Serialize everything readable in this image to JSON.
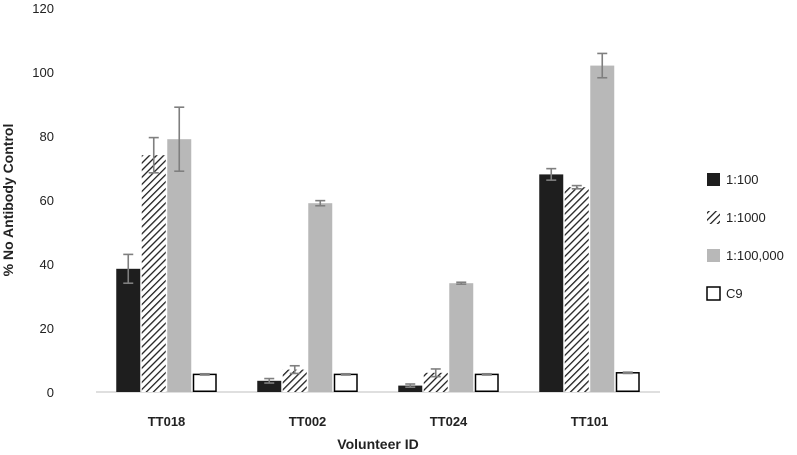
{
  "chart_data": {
    "type": "bar",
    "xlabel": "Volunteer ID",
    "ylabel": "% No Antibody Control",
    "ylim": [
      0,
      120
    ],
    "yticks": [
      0,
      20,
      40,
      60,
      80,
      100,
      120
    ],
    "grid": false,
    "legend_position": "right",
    "categories": [
      "TT018",
      "TT002",
      "TT024",
      "TT101"
    ],
    "series": [
      {
        "name": "1:100",
        "fill": "solid",
        "color": "#1e1e1e",
        "values": [
          38.5,
          3.5,
          2.0,
          68.0
        ],
        "errors": [
          4.5,
          0.7,
          0.5,
          1.8
        ]
      },
      {
        "name": "1:1000",
        "fill": "hatched",
        "color": "#1e1e1e",
        "values": [
          74.0,
          7.0,
          6.0,
          64.0
        ],
        "errors": [
          5.5,
          1.2,
          1.2,
          0.5
        ]
      },
      {
        "name": "1:100,000",
        "fill": "solid",
        "color": "#b8b8b8",
        "values": [
          79.0,
          59.0,
          34.0,
          102.0
        ],
        "errors": [
          10.0,
          0.8,
          0.3,
          3.8
        ]
      },
      {
        "name": "C9",
        "fill": "outline",
        "color": "#000000",
        "values": [
          5.5,
          5.5,
          5.5,
          6.0
        ],
        "errors": [
          0.2,
          0.2,
          0.2,
          0.2
        ]
      }
    ]
  }
}
